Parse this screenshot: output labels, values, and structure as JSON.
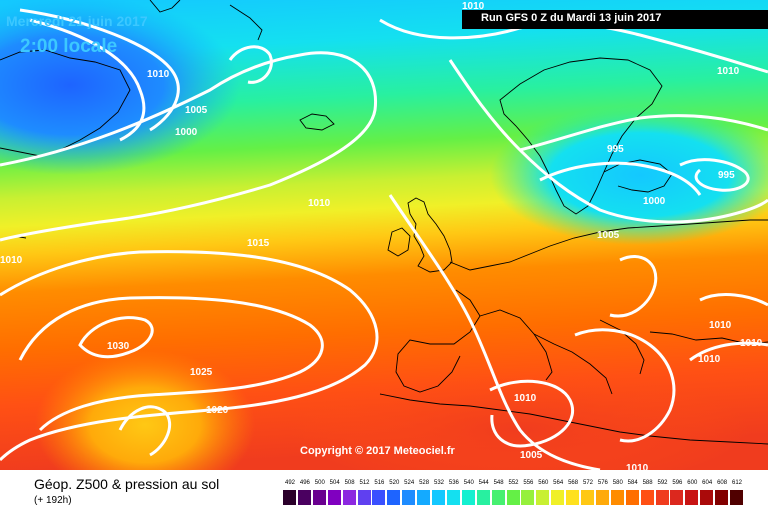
{
  "header": {
    "date": "Mercredi 21 juin 2017",
    "local_time": "2:00 locale",
    "run": "Run GFS 0 Z du Mardi 13 juin 2017"
  },
  "map": {
    "copyright": "Copyright © 2017 Meteociel.fr",
    "isobar_labels": [
      "1010",
      "1010",
      "1010",
      "1005",
      "1000",
      "995",
      "995",
      "1000",
      "1005",
      "1010",
      "1015",
      "1010",
      "1030",
      "1025",
      "1020",
      "1010",
      "1010",
      "1010",
      "1010",
      "1005",
      "1010"
    ]
  },
  "legend": {
    "title": "Géop. Z500 & pression au sol",
    "lead_time": "(+ 192h)",
    "scale": [
      {
        "label": "492",
        "color": "#2a002a"
      },
      {
        "label": "496",
        "color": "#4a0060"
      },
      {
        "label": "500",
        "color": "#6a0090"
      },
      {
        "label": "504",
        "color": "#8000c0"
      },
      {
        "label": "508",
        "color": "#8c28e0"
      },
      {
        "label": "512",
        "color": "#6040f0"
      },
      {
        "label": "516",
        "color": "#3a50ff"
      },
      {
        "label": "520",
        "color": "#1e64ff"
      },
      {
        "label": "524",
        "color": "#1e8cff"
      },
      {
        "label": "528",
        "color": "#14aaff"
      },
      {
        "label": "532",
        "color": "#14c8ff"
      },
      {
        "label": "536",
        "color": "#14e0f0"
      },
      {
        "label": "540",
        "color": "#14f0d0"
      },
      {
        "label": "544",
        "color": "#28f0a0"
      },
      {
        "label": "548",
        "color": "#46f070"
      },
      {
        "label": "552",
        "color": "#64f046"
      },
      {
        "label": "556",
        "color": "#96f03c"
      },
      {
        "label": "560",
        "color": "#c8f032"
      },
      {
        "label": "564",
        "color": "#f0f028"
      },
      {
        "label": "568",
        "color": "#ffe11e"
      },
      {
        "label": "572",
        "color": "#ffc814"
      },
      {
        "label": "576",
        "color": "#ffaa0a"
      },
      {
        "label": "580",
        "color": "#ff8c00"
      },
      {
        "label": "584",
        "color": "#ff6e00"
      },
      {
        "label": "588",
        "color": "#ff5014"
      },
      {
        "label": "592",
        "color": "#f03c1e"
      },
      {
        "label": "596",
        "color": "#dc281e"
      },
      {
        "label": "600",
        "color": "#c81414"
      },
      {
        "label": "604",
        "color": "#aa0a0a"
      },
      {
        "label": "608",
        "color": "#820000"
      },
      {
        "label": "612",
        "color": "#500000"
      }
    ]
  }
}
